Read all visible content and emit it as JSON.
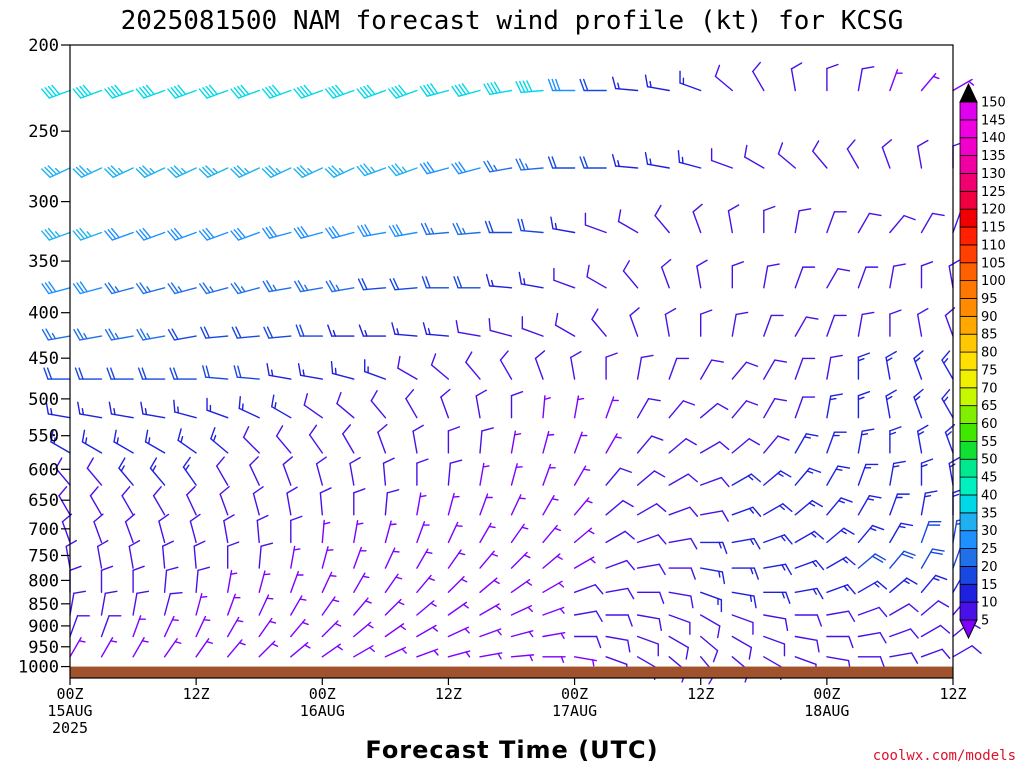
{
  "chart_data": {
    "type": "wind_barb_time_height",
    "title": "2025081500 NAM forecast wind profile (kt) for KCSG",
    "xlabel": "Forecast Time (UTC)",
    "ylabel": "",
    "credit": "coolwx.com/models",
    "y_axis": {
      "scale": "log",
      "inverted": true,
      "range": [
        1030,
        200
      ],
      "ticks": [
        200,
        250,
        300,
        350,
        400,
        450,
        500,
        550,
        600,
        650,
        700,
        750,
        800,
        850,
        900,
        950,
        1000
      ]
    },
    "x_axis": {
      "range_hours": [
        0,
        84
      ],
      "ticks": [
        {
          "hour": 0,
          "lines": [
            "00Z",
            "15AUG",
            "2025"
          ]
        },
        {
          "hour": 12,
          "lines": [
            "12Z"
          ]
        },
        {
          "hour": 24,
          "lines": [
            "00Z",
            "16AUG"
          ]
        },
        {
          "hour": 36,
          "lines": [
            "12Z"
          ]
        },
        {
          "hour": 48,
          "lines": [
            "00Z",
            "17AUG"
          ]
        },
        {
          "hour": 60,
          "lines": [
            "12Z"
          ]
        },
        {
          "hour": 72,
          "lines": [
            "00Z",
            "18AUG"
          ]
        },
        {
          "hour": 84,
          "lines": [
            "12Z"
          ]
        }
      ]
    },
    "surface_pressure_hpa": 1000,
    "colorbar": {
      "unit": "kt",
      "levels": [
        5,
        10,
        15,
        20,
        25,
        30,
        35,
        40,
        45,
        50,
        55,
        60,
        65,
        70,
        75,
        80,
        85,
        90,
        95,
        100,
        105,
        110,
        115,
        120,
        125,
        130,
        135,
        140,
        145,
        150
      ],
      "colors": [
        "#7f00ff",
        "#4a10e8",
        "#2020e0",
        "#1848e0",
        "#2070e8",
        "#1e90ff",
        "#20b0f0",
        "#00d8e8",
        "#00f0c0",
        "#00e890",
        "#10e030",
        "#40e800",
        "#80f000",
        "#c8f800",
        "#f0f000",
        "#ffe000",
        "#ffc800",
        "#ffa800",
        "#ff8c00",
        "#ff7800",
        "#ff6000",
        "#ff4000",
        "#ff2000",
        "#f00000",
        "#f00040",
        "#f00070",
        "#f000a0",
        "#f000c8",
        "#f000e0",
        "#e000f0"
      ]
    },
    "time_hours": [
      0,
      3,
      6,
      9,
      12,
      15,
      18,
      21,
      24,
      27,
      30,
      33,
      36,
      39,
      42,
      45,
      48,
      51,
      54,
      57,
      60,
      63,
      66,
      69,
      72,
      75,
      78,
      81,
      84
    ],
    "levels_hpa": [
      225,
      275,
      325,
      375,
      425,
      475,
      525,
      575,
      625,
      675,
      725,
      775,
      825,
      875,
      925,
      975
    ],
    "wind_dir_deg": [
      [
        250,
        250,
        250,
        250,
        250,
        250,
        250,
        250,
        250,
        250,
        250,
        250,
        255,
        255,
        260,
        265,
        270,
        270,
        275,
        280,
        290,
        310,
        330,
        350,
        360,
        10,
        20,
        40,
        60
      ],
      [
        245,
        245,
        245,
        245,
        245,
        245,
        245,
        245,
        245,
        245,
        250,
        250,
        255,
        255,
        260,
        265,
        270,
        270,
        275,
        280,
        285,
        290,
        300,
        310,
        320,
        330,
        340,
        350,
        360
      ],
      [
        250,
        250,
        250,
        250,
        250,
        250,
        250,
        255,
        255,
        255,
        260,
        260,
        265,
        265,
        270,
        275,
        280,
        290,
        300,
        320,
        340,
        350,
        0,
        10,
        20,
        30,
        40,
        30,
        20
      ],
      [
        255,
        255,
        255,
        255,
        255,
        255,
        255,
        260,
        260,
        260,
        265,
        265,
        270,
        270,
        275,
        280,
        290,
        300,
        320,
        340,
        350,
        0,
        10,
        20,
        30,
        20,
        10,
        0,
        350
      ],
      [
        260,
        260,
        260,
        260,
        260,
        265,
        265,
        265,
        270,
        270,
        270,
        275,
        275,
        280,
        285,
        290,
        300,
        320,
        340,
        350,
        0,
        10,
        20,
        30,
        20,
        10,
        0,
        350,
        340
      ],
      [
        270,
        270,
        270,
        270,
        270,
        275,
        275,
        280,
        280,
        285,
        290,
        300,
        310,
        320,
        330,
        340,
        350,
        0,
        10,
        20,
        30,
        40,
        30,
        20,
        10,
        0,
        350,
        340,
        330
      ],
      [
        280,
        280,
        280,
        280,
        285,
        290,
        295,
        300,
        305,
        310,
        320,
        330,
        340,
        350,
        0,
        5,
        10,
        20,
        30,
        40,
        50,
        40,
        30,
        20,
        10,
        0,
        350,
        340,
        330
      ],
      [
        300,
        300,
        300,
        300,
        305,
        310,
        315,
        320,
        325,
        330,
        340,
        350,
        0,
        5,
        10,
        15,
        20,
        30,
        40,
        50,
        60,
        50,
        40,
        30,
        20,
        10,
        0,
        350,
        340
      ],
      [
        320,
        320,
        320,
        320,
        325,
        330,
        335,
        340,
        345,
        350,
        355,
        0,
        5,
        10,
        15,
        20,
        30,
        40,
        50,
        60,
        70,
        60,
        50,
        40,
        30,
        20,
        10,
        0,
        350
      ],
      [
        330,
        330,
        330,
        330,
        335,
        340,
        345,
        350,
        355,
        0,
        5,
        10,
        15,
        20,
        25,
        30,
        40,
        50,
        60,
        70,
        80,
        70,
        60,
        50,
        40,
        30,
        20,
        10,
        0
      ],
      [
        340,
        340,
        340,
        345,
        345,
        350,
        355,
        0,
        5,
        10,
        15,
        20,
        25,
        30,
        35,
        40,
        50,
        60,
        70,
        80,
        90,
        80,
        70,
        60,
        50,
        40,
        30,
        20,
        10
      ],
      [
        350,
        350,
        350,
        355,
        355,
        0,
        5,
        10,
        15,
        20,
        25,
        30,
        35,
        40,
        45,
        50,
        60,
        70,
        80,
        90,
        100,
        90,
        80,
        70,
        60,
        50,
        40,
        30,
        20
      ],
      [
        0,
        0,
        0,
        5,
        5,
        10,
        15,
        20,
        25,
        30,
        35,
        40,
        45,
        50,
        55,
        60,
        70,
        80,
        90,
        100,
        110,
        100,
        90,
        80,
        70,
        60,
        50,
        40,
        30
      ],
      [
        10,
        10,
        10,
        15,
        15,
        20,
        25,
        30,
        35,
        40,
        45,
        50,
        55,
        60,
        65,
        70,
        80,
        90,
        100,
        110,
        120,
        110,
        100,
        90,
        80,
        70,
        60,
        50,
        40
      ],
      [
        20,
        20,
        20,
        25,
        25,
        30,
        35,
        40,
        45,
        50,
        55,
        60,
        65,
        70,
        75,
        80,
        90,
        100,
        110,
        120,
        130,
        120,
        110,
        100,
        90,
        80,
        70,
        60,
        50
      ],
      [
        30,
        30,
        30,
        35,
        35,
        40,
        45,
        50,
        55,
        60,
        65,
        70,
        75,
        80,
        85,
        90,
        100,
        110,
        120,
        130,
        140,
        130,
        120,
        110,
        100,
        90,
        80,
        70,
        60
      ]
    ],
    "wind_speed_kt": [
      [
        40,
        40,
        40,
        40,
        40,
        40,
        40,
        40,
        40,
        40,
        40,
        40,
        40,
        40,
        40,
        40,
        30,
        20,
        15,
        15,
        15,
        10,
        10,
        10,
        10,
        10,
        5,
        5,
        5
      ],
      [
        35,
        35,
        35,
        35,
        35,
        35,
        35,
        35,
        35,
        35,
        35,
        35,
        30,
        30,
        25,
        25,
        20,
        20,
        15,
        15,
        15,
        10,
        10,
        10,
        10,
        10,
        10,
        10,
        10
      ],
      [
        35,
        35,
        30,
        30,
        30,
        30,
        30,
        30,
        30,
        30,
        30,
        30,
        25,
        25,
        20,
        20,
        15,
        10,
        10,
        10,
        10,
        10,
        10,
        10,
        10,
        10,
        10,
        10,
        10
      ],
      [
        30,
        30,
        25,
        25,
        25,
        25,
        25,
        25,
        25,
        25,
        20,
        20,
        20,
        20,
        15,
        15,
        10,
        10,
        10,
        10,
        10,
        10,
        10,
        10,
        10,
        10,
        10,
        10,
        10
      ],
      [
        25,
        25,
        25,
        25,
        20,
        20,
        20,
        20,
        20,
        15,
        15,
        15,
        15,
        10,
        10,
        10,
        10,
        10,
        10,
        10,
        10,
        10,
        10,
        10,
        10,
        10,
        10,
        10,
        10
      ],
      [
        20,
        20,
        20,
        20,
        20,
        20,
        20,
        15,
        15,
        15,
        15,
        10,
        10,
        10,
        10,
        10,
        10,
        10,
        10,
        10,
        10,
        10,
        10,
        10,
        10,
        15,
        15,
        15,
        15
      ],
      [
        15,
        15,
        15,
        15,
        15,
        15,
        15,
        15,
        10,
        10,
        10,
        10,
        10,
        10,
        10,
        5,
        5,
        5,
        10,
        10,
        10,
        10,
        10,
        10,
        15,
        15,
        15,
        15,
        15
      ],
      [
        15,
        15,
        15,
        15,
        15,
        15,
        10,
        10,
        10,
        10,
        10,
        10,
        10,
        10,
        5,
        5,
        5,
        5,
        10,
        10,
        10,
        10,
        10,
        15,
        15,
        15,
        15,
        15,
        15
      ],
      [
        10,
        10,
        15,
        15,
        15,
        10,
        10,
        10,
        10,
        10,
        10,
        10,
        10,
        5,
        5,
        5,
        5,
        10,
        10,
        10,
        10,
        15,
        15,
        15,
        15,
        15,
        15,
        15,
        15
      ],
      [
        10,
        10,
        10,
        10,
        10,
        10,
        10,
        10,
        10,
        10,
        10,
        5,
        5,
        5,
        5,
        5,
        5,
        10,
        10,
        10,
        10,
        15,
        15,
        15,
        15,
        15,
        15,
        15,
        15
      ],
      [
        10,
        10,
        10,
        10,
        10,
        10,
        10,
        10,
        5,
        5,
        5,
        5,
        5,
        5,
        5,
        5,
        5,
        10,
        10,
        10,
        15,
        15,
        15,
        15,
        15,
        15,
        15,
        20,
        20
      ],
      [
        10,
        10,
        10,
        10,
        10,
        10,
        10,
        5,
        5,
        5,
        5,
        5,
        5,
        5,
        5,
        5,
        5,
        10,
        10,
        10,
        15,
        15,
        15,
        15,
        15,
        20,
        20,
        20,
        20
      ],
      [
        10,
        10,
        10,
        10,
        10,
        5,
        5,
        5,
        5,
        5,
        5,
        5,
        5,
        5,
        5,
        5,
        10,
        10,
        10,
        10,
        15,
        15,
        15,
        15,
        15,
        15,
        15,
        15,
        15
      ],
      [
        10,
        10,
        10,
        10,
        5,
        5,
        5,
        5,
        5,
        5,
        5,
        5,
        5,
        5,
        5,
        5,
        10,
        10,
        10,
        10,
        10,
        10,
        10,
        10,
        10,
        10,
        10,
        10,
        10
      ],
      [
        10,
        10,
        5,
        5,
        5,
        5,
        5,
        5,
        5,
        5,
        5,
        5,
        5,
        5,
        5,
        5,
        10,
        10,
        10,
        10,
        10,
        10,
        10,
        10,
        10,
        10,
        10,
        10,
        10
      ],
      [
        5,
        5,
        5,
        5,
        5,
        5,
        5,
        5,
        5,
        5,
        5,
        5,
        5,
        5,
        5,
        5,
        5,
        10,
        10,
        10,
        10,
        10,
        10,
        10,
        10,
        10,
        10,
        10,
        10
      ]
    ]
  }
}
